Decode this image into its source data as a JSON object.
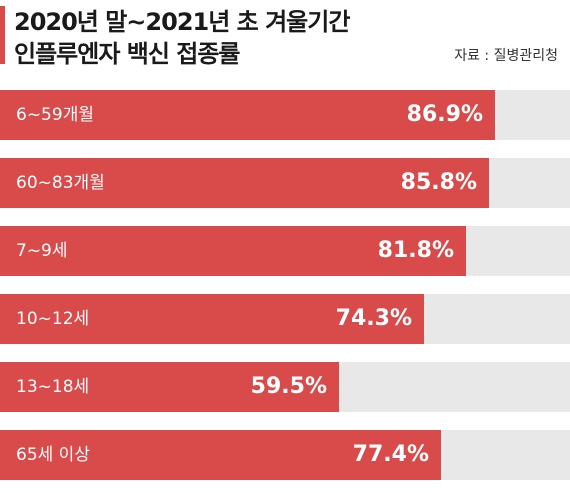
{
  "header": {
    "title_line1": "2020년 말~2021년 초 겨울기간",
    "title_line2": "인플루엔자 백신 접종률",
    "source": "자료 : 질병관리청"
  },
  "colors": {
    "bar": "#d94a4a",
    "track": "#e8e8e8",
    "accent": "#d94a4a"
  },
  "chart_data": {
    "type": "bar",
    "orientation": "horizontal",
    "title": "2020년 말~2021년 초 겨울기간 인플루엔자 백신 접종률",
    "categories": [
      "6~59개월",
      "60~83개월",
      "7~9세",
      "10~12세",
      "13~18세",
      "65세 이상"
    ],
    "values": [
      86.9,
      85.8,
      81.8,
      74.3,
      59.5,
      77.4
    ],
    "value_labels": [
      "86.9%",
      "85.8%",
      "81.8%",
      "74.3%",
      "59.5%",
      "77.4%"
    ],
    "unit": "%",
    "xlim": [
      0,
      100
    ],
    "grid": false,
    "legend": "none"
  }
}
